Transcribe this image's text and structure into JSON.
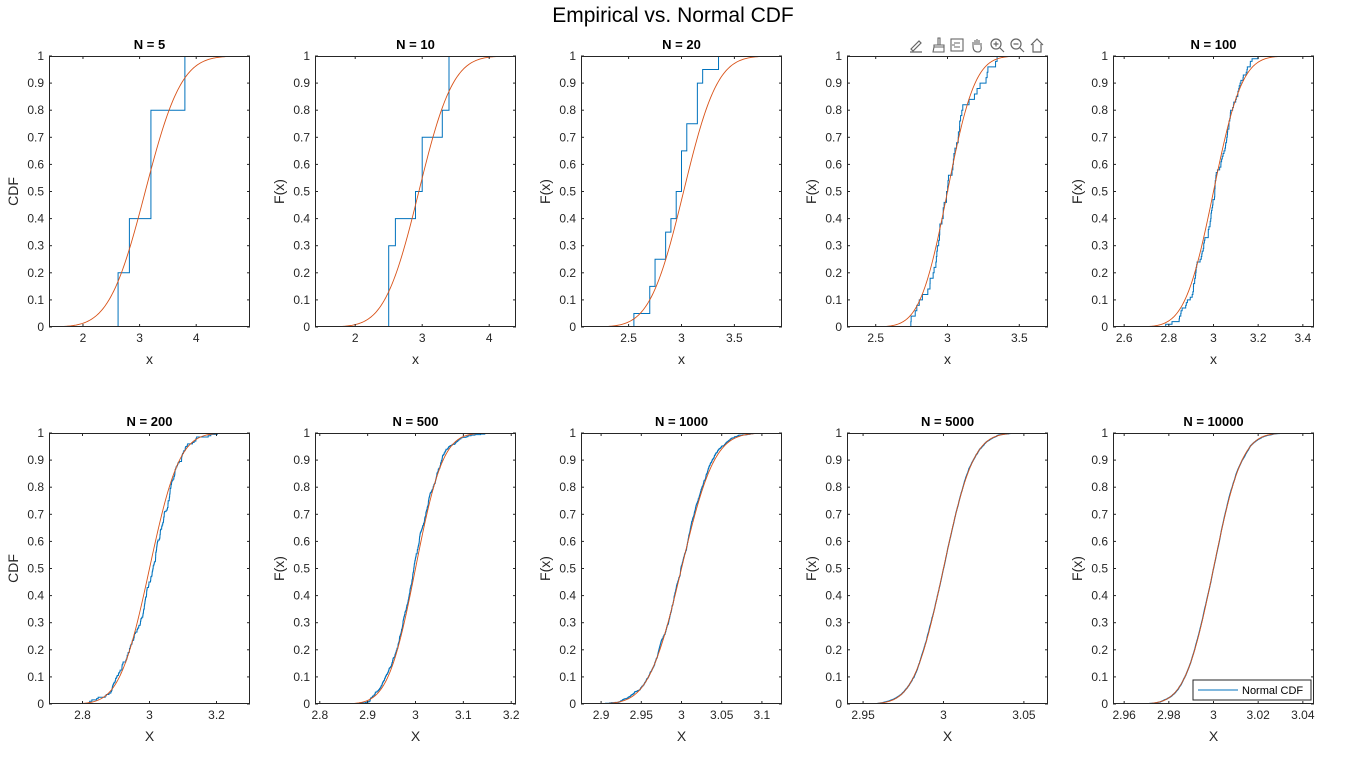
{
  "figure": {
    "title": "Empirical vs. Normal CDF"
  },
  "toolbar": {
    "icons": [
      "edit-plot-icon",
      "data-brush-icon",
      "data-tips-icon",
      "pan-icon",
      "zoom-in-icon",
      "zoom-out-icon",
      "home-icon"
    ]
  },
  "colors": {
    "ecdf": "#0072BD",
    "normal": "#D95319",
    "axis": "#262626"
  },
  "legend": {
    "label": "Normal CDF",
    "location": "bottom-right"
  },
  "chart_data": [
    {
      "type": "line",
      "title": "N = 5",
      "xlabel": "x",
      "ylabel": "CDF",
      "xlim": [
        1.4,
        4.95
      ],
      "xticks": [
        2,
        3,
        4
      ],
      "ylim": [
        0,
        1
      ],
      "yticks": [
        0,
        0.1,
        0.2,
        0.3,
        0.4,
        0.5,
        0.6,
        0.7,
        0.8,
        0.9,
        1
      ],
      "series": [
        {
          "kind": "ecdf",
          "x": [
            2.62,
            2.82,
            3.2,
            3.8
          ],
          "y": [
            0.2,
            0.4,
            0.8,
            1.0
          ]
        },
        {
          "kind": "normal_cdf",
          "mu": 3.1,
          "sigma": 0.5,
          "name": "Normal CDF"
        }
      ]
    },
    {
      "type": "line",
      "title": "N = 10",
      "xlabel": "x",
      "ylabel": "F(x)",
      "xlim": [
        1.4,
        4.4
      ],
      "xticks": [
        2,
        3,
        4
      ],
      "ylim": [
        0,
        1
      ],
      "yticks": [
        0,
        0.1,
        0.2,
        0.3,
        0.4,
        0.5,
        0.6,
        0.7,
        0.8,
        0.9,
        1
      ],
      "series": [
        {
          "kind": "ecdf",
          "x": [
            2.5,
            2.6,
            2.9,
            3.0,
            3.3,
            3.4
          ],
          "y": [
            0.3,
            0.4,
            0.5,
            0.7,
            0.8,
            1.0
          ]
        },
        {
          "kind": "normal_cdf",
          "mu": 2.95,
          "sigma": 0.4,
          "name": "Normal CDF"
        }
      ]
    },
    {
      "type": "line",
      "title": "N = 20",
      "xlabel": "x",
      "ylabel": "F(x)",
      "xlim": [
        2.05,
        3.95
      ],
      "xticks": [
        2.5,
        3,
        3.5
      ],
      "ylim": [
        0,
        1
      ],
      "yticks": [
        0,
        0.1,
        0.2,
        0.3,
        0.4,
        0.5,
        0.6,
        0.7,
        0.8,
        0.9,
        1
      ],
      "series": [
        {
          "kind": "ecdf",
          "x": [
            2.55,
            2.7,
            2.75,
            2.85,
            2.9,
            2.95,
            3.0,
            3.05,
            3.15,
            3.2,
            3.35,
            3.5
          ],
          "y": [
            0.05,
            0.15,
            0.25,
            0.35,
            0.4,
            0.5,
            0.65,
            0.75,
            0.9,
            0.95,
            1.0,
            1.0
          ]
        },
        {
          "kind": "normal_cdf",
          "mu": 3.02,
          "sigma": 0.25,
          "name": "Normal CDF"
        }
      ]
    },
    {
      "type": "line",
      "title": "",
      "xlabel": "x",
      "ylabel": "F(x)",
      "xlim": [
        2.3,
        3.7
      ],
      "xticks": [
        2.5,
        3,
        3.5
      ],
      "ylim": [
        0,
        1
      ],
      "yticks": [
        0,
        0.1,
        0.2,
        0.3,
        0.4,
        0.5,
        0.6,
        0.7,
        0.8,
        0.9,
        1
      ],
      "series": [
        {
          "kind": "ecdf_sample",
          "mu": 3.0,
          "sigma": 0.15,
          "n": 50,
          "seed": 4
        },
        {
          "kind": "normal_cdf",
          "mu": 3.0,
          "sigma": 0.15,
          "name": "Normal CDF"
        }
      ]
    },
    {
      "type": "line",
      "title": "N = 100",
      "xlabel": "x",
      "ylabel": "F(x)",
      "xlim": [
        2.55,
        3.45
      ],
      "xticks": [
        2.6,
        2.8,
        3,
        3.2,
        3.4
      ],
      "ylim": [
        0,
        1
      ],
      "yticks": [
        0,
        0.1,
        0.2,
        0.3,
        0.4,
        0.5,
        0.6,
        0.7,
        0.8,
        0.9,
        1
      ],
      "series": [
        {
          "kind": "ecdf_sample",
          "mu": 3.0,
          "sigma": 0.1,
          "n": 100,
          "seed": 5
        },
        {
          "kind": "normal_cdf",
          "mu": 3.0,
          "sigma": 0.1,
          "name": "Normal CDF"
        }
      ]
    },
    {
      "type": "line",
      "title": "N = 200",
      "xlabel": "X",
      "ylabel": "CDF",
      "xlim": [
        2.7,
        3.3
      ],
      "xticks": [
        2.8,
        3,
        3.2
      ],
      "ylim": [
        0,
        1
      ],
      "yticks": [
        0,
        0.1,
        0.2,
        0.3,
        0.4,
        0.5,
        0.6,
        0.7,
        0.8,
        0.9,
        1
      ],
      "series": [
        {
          "kind": "ecdf_sample",
          "mu": 3.0,
          "sigma": 0.07,
          "n": 200,
          "seed": 6
        },
        {
          "kind": "normal_cdf",
          "mu": 3.0,
          "sigma": 0.07,
          "name": "Normal CDF"
        }
      ]
    },
    {
      "type": "line",
      "title": "N = 500",
      "xlabel": "X",
      "ylabel": "F(x)",
      "xlim": [
        2.79,
        3.21
      ],
      "xticks": [
        2.8,
        2.9,
        3,
        3.1,
        3.2
      ],
      "ylim": [
        0,
        1
      ],
      "yticks": [
        0,
        0.1,
        0.2,
        0.3,
        0.4,
        0.5,
        0.6,
        0.7,
        0.8,
        0.9,
        1
      ],
      "series": [
        {
          "kind": "ecdf_sample",
          "mu": 3.0,
          "sigma": 0.045,
          "n": 500,
          "seed": 7
        },
        {
          "kind": "normal_cdf",
          "mu": 3.0,
          "sigma": 0.045,
          "name": "Normal CDF"
        }
      ]
    },
    {
      "type": "line",
      "title": "N = 1000",
      "xlabel": "X",
      "ylabel": "F(x)",
      "xlim": [
        2.875,
        3.125
      ],
      "xticks": [
        2.9,
        2.95,
        3,
        3.05,
        3.1
      ],
      "ylim": [
        0,
        1
      ],
      "yticks": [
        0,
        0.1,
        0.2,
        0.3,
        0.4,
        0.5,
        0.6,
        0.7,
        0.8,
        0.9,
        1
      ],
      "series": [
        {
          "kind": "ecdf_sample",
          "mu": 3.0,
          "sigma": 0.032,
          "n": 1000,
          "seed": 8
        },
        {
          "kind": "normal_cdf",
          "mu": 3.0,
          "sigma": 0.032,
          "name": "Normal CDF"
        }
      ]
    },
    {
      "type": "line",
      "title": "N = 5000",
      "xlabel": "X",
      "ylabel": "F(x)",
      "xlim": [
        2.94,
        3.065
      ],
      "xticks": [
        2.95,
        3,
        3.05
      ],
      "ylim": [
        0,
        1
      ],
      "yticks": [
        0,
        0.1,
        0.2,
        0.3,
        0.4,
        0.5,
        0.6,
        0.7,
        0.8,
        0.9,
        1
      ],
      "series": [
        {
          "kind": "ecdf_sample",
          "mu": 3.0,
          "sigma": 0.0145,
          "n": 5000,
          "seed": 9
        },
        {
          "kind": "normal_cdf",
          "mu": 3.0,
          "sigma": 0.0145,
          "name": "Normal CDF"
        }
      ]
    },
    {
      "type": "line",
      "title": "N = 10000",
      "xlabel": "X",
      "ylabel": "F(x)",
      "xlim": [
        2.955,
        3.045
      ],
      "xticks": [
        2.96,
        2.98,
        3,
        3.02,
        3.04
      ],
      "ylim": [
        0,
        1
      ],
      "yticks": [
        0,
        0.1,
        0.2,
        0.3,
        0.4,
        0.5,
        0.6,
        0.7,
        0.8,
        0.9,
        1
      ],
      "series": [
        {
          "kind": "ecdf_sample",
          "mu": 3.0,
          "sigma": 0.01,
          "n": 10000,
          "seed": 10
        },
        {
          "kind": "normal_cdf",
          "mu": 3.0,
          "sigma": 0.01,
          "name": "Normal CDF"
        }
      ],
      "legend": true
    }
  ]
}
